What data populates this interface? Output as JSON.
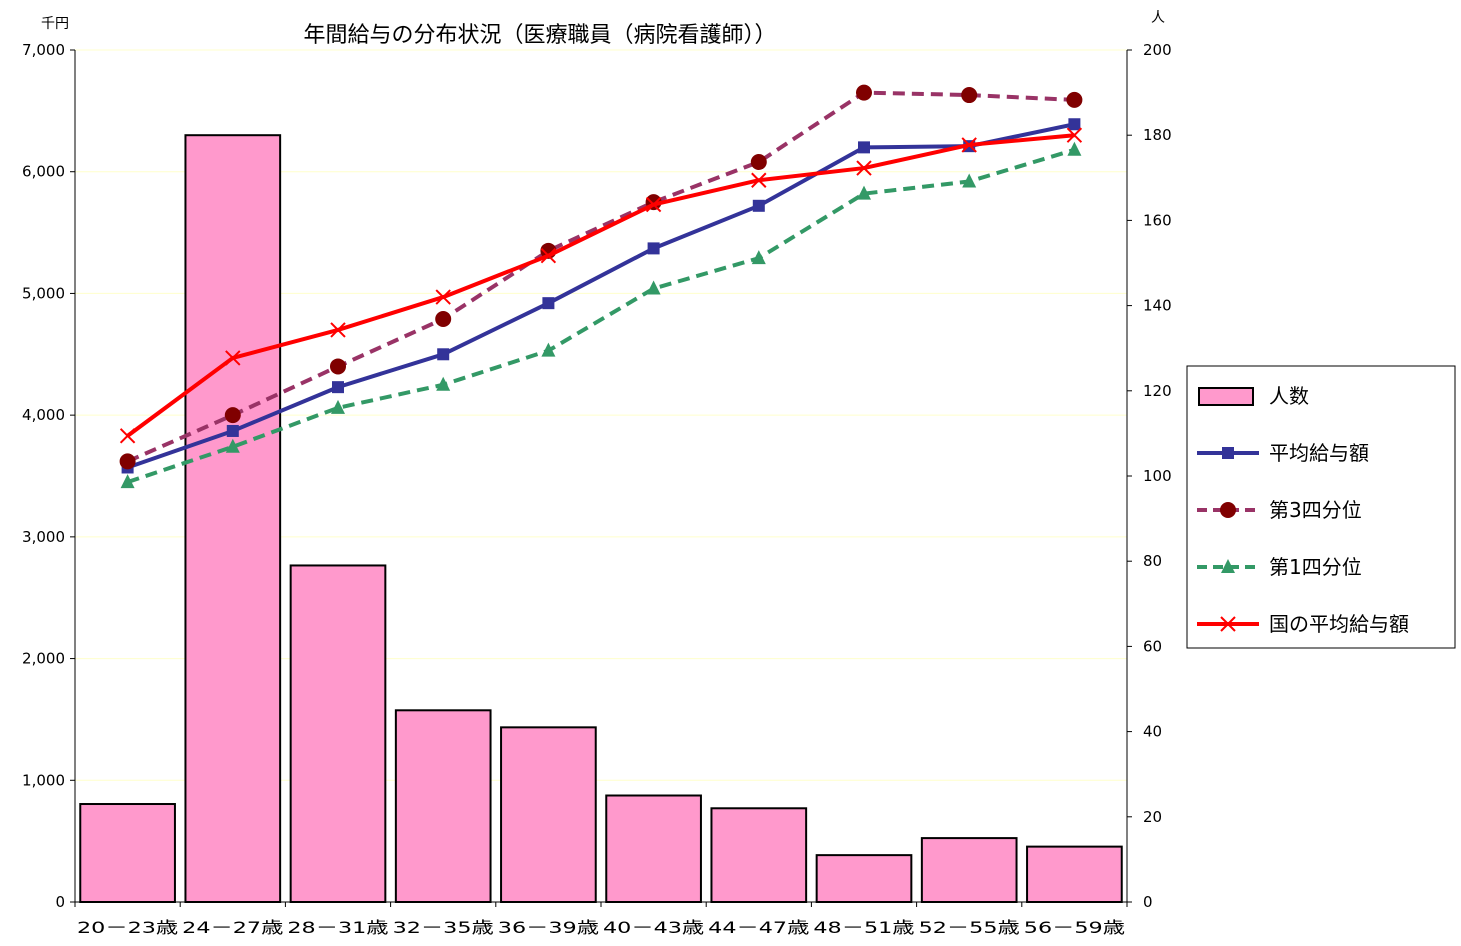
{
  "chart_data": {
    "type": "bar+line",
    "title": "年間給与の分布状況（医療職員（病院看護師））",
    "y_left_unit": "千円",
    "y_right_unit": "人",
    "y_left_range": [
      0,
      7000
    ],
    "y_left_ticks": [
      "0",
      "1,000",
      "2,000",
      "3,000",
      "4,000",
      "5,000",
      "6,000",
      "7,000"
    ],
    "y_right_range": [
      0,
      200
    ],
    "y_right_ticks": [
      "0",
      "20",
      "40",
      "60",
      "80",
      "100",
      "120",
      "140",
      "160",
      "180",
      "200"
    ],
    "grid": "horizontal",
    "legend_position": "right",
    "categories": [
      "20－23歳",
      "24－27歳",
      "28－31歳",
      "32－35歳",
      "36－39歳",
      "40－43歳",
      "44－47歳",
      "48－51歳",
      "52－55歳",
      "56－59歳"
    ],
    "bars": {
      "name": "人数",
      "axis": "right",
      "color": "#ff99cc",
      "values": [
        23,
        180,
        79,
        45,
        41,
        25,
        22,
        11,
        15,
        13
      ]
    },
    "series": [
      {
        "name": "平均給与額",
        "axis": "left",
        "color": "#333399",
        "dash": "solid",
        "marker": "square",
        "values": [
          3570,
          3870,
          4230,
          4500,
          4920,
          5370,
          5720,
          6200,
          6210,
          6390
        ]
      },
      {
        "name": "第3四分位",
        "axis": "left",
        "color": "#993366",
        "dash": "dashed",
        "marker": "circle",
        "markerColor": "#800000",
        "values": [
          3620,
          4000,
          4400,
          4790,
          5350,
          5750,
          6080,
          6650,
          6630,
          6590
        ]
      },
      {
        "name": "第1四分位",
        "axis": "left",
        "color": "#339966",
        "dash": "dashed",
        "marker": "triangle",
        "values": [
          3450,
          3740,
          4060,
          4250,
          4530,
          5040,
          5290,
          5820,
          5920,
          6180
        ]
      },
      {
        "name": "国の平均給与額",
        "axis": "left",
        "color": "#ff0000",
        "dash": "solid",
        "marker": "x",
        "values": [
          3830,
          4470,
          4700,
          4970,
          5310,
          5730,
          5930,
          6030,
          6220,
          6300
        ]
      }
    ]
  }
}
